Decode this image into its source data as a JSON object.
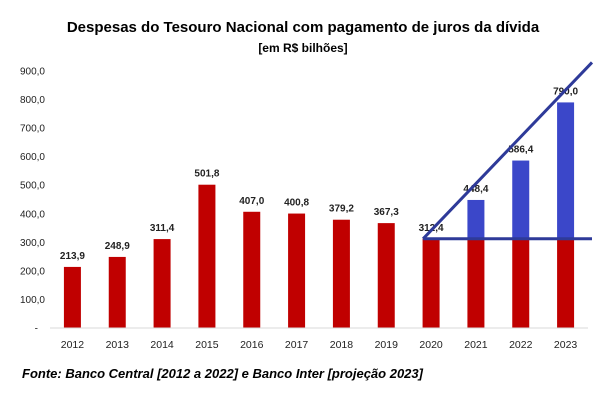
{
  "chart_data": {
    "type": "bar",
    "title": "Despesas do Tesouro Nacional com pagamento de juros da dívida",
    "subtitle": "[em R$ bilhões]",
    "xlabel": "",
    "ylabel": "",
    "ylim": [
      0,
      900
    ],
    "yticks": [
      {
        "value": 0,
        "label": "-"
      },
      {
        "value": 100,
        "label": "100,0"
      },
      {
        "value": 200,
        "label": "200,0"
      },
      {
        "value": 300,
        "label": "300,0"
      },
      {
        "value": 400,
        "label": "400,0"
      },
      {
        "value": 500,
        "label": "500,0"
      },
      {
        "value": 600,
        "label": "600,0"
      },
      {
        "value": 700,
        "label": "700,0"
      },
      {
        "value": 800,
        "label": "800,0"
      },
      {
        "value": 900,
        "label": "900,0"
      }
    ],
    "categories": [
      "2012",
      "2013",
      "2014",
      "2015",
      "2016",
      "2017",
      "2018",
      "2019",
      "2020",
      "2021",
      "2022",
      "2023"
    ],
    "values": [
      213.9,
      248.9,
      311.4,
      501.8,
      407.0,
      400.8,
      379.2,
      367.3,
      312.4,
      448.4,
      586.4,
      790.0
    ],
    "value_labels": [
      "213,9",
      "248,9",
      "311,4",
      "501,8",
      "407,0",
      "400,8",
      "379,2",
      "367,3",
      "312,4",
      "448,4",
      "586,4",
      "790,0"
    ],
    "baseline_value": 312.4,
    "highlight_from_index": 9,
    "colors": {
      "base": "#c00000",
      "highlight": "#3b47c9",
      "annotation_line": "#2e3a99"
    },
    "annotations": [
      {
        "type": "horizontal_line",
        "y": 312.4,
        "from_category": "2020",
        "to_category": "2023"
      },
      {
        "type": "trend_line",
        "from": {
          "category": "2020",
          "value": 312.4
        },
        "to": {
          "category": "2023",
          "value": 790.0
        }
      }
    ],
    "source": "Fonte: Banco Central [2012 a 2022] e Banco Inter [projeção 2023]"
  }
}
